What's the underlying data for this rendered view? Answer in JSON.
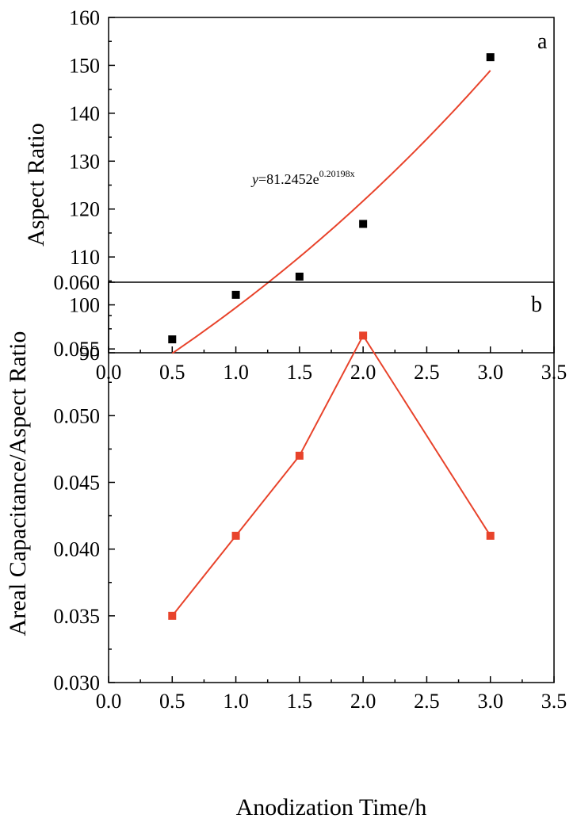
{
  "chart_data": [
    {
      "type": "scatter",
      "panel_label": "a",
      "ylabel": "Aspect Ratio",
      "xlabel": "",
      "xlim": [
        0.0,
        3.5
      ],
      "ylim": [
        90,
        160
      ],
      "xticks": [
        "0.0",
        "0.5",
        "1.0",
        "1.5",
        "2.0",
        "2.5",
        "3.0",
        "3.5"
      ],
      "yticks": [
        "90",
        "100",
        "110",
        "120",
        "130",
        "140",
        "150",
        "160"
      ],
      "grid": false,
      "series": [
        {
          "marker": "square",
          "color": "#000000",
          "x": [
            0.5,
            1.0,
            1.5,
            2.0,
            3.0
          ],
          "y": [
            92.8,
            102.1,
            105.9,
            116.9,
            151.7
          ]
        }
      ],
      "fit": {
        "type": "exponential",
        "color": "#e8432b",
        "a": 81.2452,
        "b": 0.20198,
        "x_range": [
          0.5,
          3.0
        ],
        "equation_prefix": "y",
        "equation_base": "=81.2452e",
        "equation_exponent": "0.20198x"
      }
    },
    {
      "type": "line",
      "panel_label": "b",
      "ylabel": "Areal Capacitance/Aspect Ratio",
      "xlabel": "Anodization Time/h",
      "xlim": [
        0.0,
        3.5
      ],
      "ylim": [
        0.03,
        0.06
      ],
      "xticks": [
        "0.0",
        "0.5",
        "1.0",
        "1.5",
        "2.0",
        "2.5",
        "3.0",
        "3.5"
      ],
      "yticks": [
        "0.030",
        "0.035",
        "0.040",
        "0.045",
        "0.050",
        "0.055",
        "0.060"
      ],
      "grid": false,
      "series": [
        {
          "marker": "square",
          "color": "#e8432b",
          "x": [
            0.5,
            1.0,
            1.5,
            2.0,
            3.0
          ],
          "y": [
            0.035,
            0.041,
            0.047,
            0.056,
            0.041
          ]
        }
      ]
    }
  ]
}
